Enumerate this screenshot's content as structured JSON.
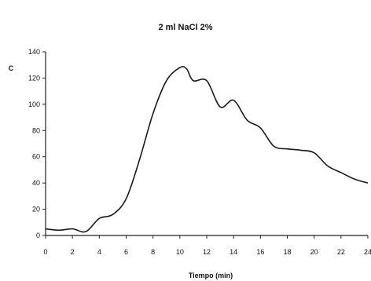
{
  "chart_data": {
    "type": "line",
    "title": "2 ml NaCl 2%",
    "xlabel": "Tiempo (min)",
    "ylabel": "C",
    "xlim": [
      0,
      24
    ],
    "ylim": [
      0,
      140
    ],
    "xticks": [
      "0",
      "2",
      "4",
      "6",
      "8",
      "10",
      "12",
      "14",
      "16",
      "18",
      "20",
      "22",
      "24"
    ],
    "yticks": [
      "0",
      "20",
      "40",
      "60",
      "80",
      "100",
      "120",
      "140"
    ],
    "grid": false,
    "series": [
      {
        "color": "#1a1a1a",
        "x": [
          0,
          1,
          2,
          3,
          4,
          5,
          6,
          7,
          8,
          9,
          10,
          10.5,
          11,
          12,
          13,
          14,
          15,
          16,
          17,
          18,
          19,
          20,
          21,
          22,
          23,
          24
        ],
        "y": [
          5,
          4,
          5,
          3,
          13,
          16,
          28,
          58,
          93,
          118,
          128,
          127,
          118,
          118,
          98,
          103,
          88,
          82,
          68,
          66,
          65,
          63,
          53,
          48,
          43,
          40
        ]
      }
    ]
  }
}
